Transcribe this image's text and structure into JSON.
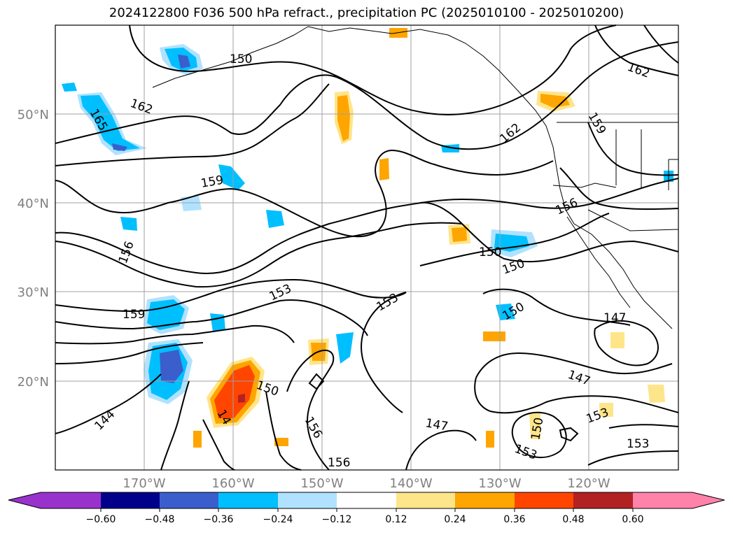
{
  "title": "2024122800 F036 500 hPa refract., precipitation PC (2025010100 - 2025010200)",
  "lat_labels": [
    "50°N",
    "40°N",
    "30°N",
    "20°N"
  ],
  "lon_labels": [
    "170°W",
    "160°W",
    "150°W",
    "140°W",
    "130°W",
    "120°W"
  ],
  "contour_labels": [
    "150",
    "162",
    "165",
    "162",
    "159",
    "156",
    "159",
    "153",
    "153",
    "156",
    "150",
    "150",
    "150",
    "162",
    "159",
    "156",
    "147",
    "147",
    "150",
    "153",
    "156",
    "144",
    "14",
    "147",
    "153",
    "153",
    "150"
  ],
  "colorbar": {
    "ticks": [
      "−0.60",
      "−0.48",
      "−0.36",
      "−0.24",
      "−0.12",
      "0.12",
      "0.24",
      "0.36",
      "0.48",
      "0.60"
    ],
    "colors": [
      "#9932cc",
      "#00008b",
      "#3a5fcd",
      "#00bfff",
      "#b0e2ff",
      "#ffffff",
      "#ffe58a",
      "#ffa500",
      "#ff4500",
      "#b22222",
      "#ff82ab"
    ]
  }
}
